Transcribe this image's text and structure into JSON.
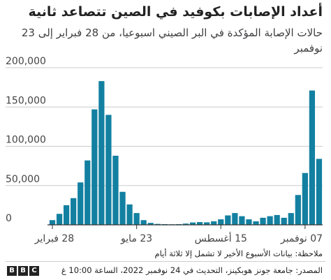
{
  "header": {
    "title": "أعداد الإصابات بكوفيد في الصين تتصاعد ثانية",
    "subtitle": "حالات الإصابة المؤكدة في البر الصيني اسبوعيا، من 28 فبراير إلى 23 نوفمبر"
  },
  "footer": {
    "note": "ملاحظة: بيانات الأسبوع الأخير لا تشمل إلا ثلاثة أيام",
    "source": "المصدر: جامعة جونز هوبكينز، التحديث في 24 نوفمبر 2022، الساعة 10:00 غ",
    "logo_letters": [
      "B",
      "B",
      "C"
    ]
  },
  "colors": {
    "bar": "#1380a1",
    "grid": "#cbcbcb",
    "axis": "#333333",
    "text": "#222222"
  },
  "chart_data": {
    "type": "bar",
    "title": "أعداد الإصابات بكوفيد في الصين تتصاعد ثانية",
    "subtitle": "حالات الإصابة المؤكدة في البر الصيني اسبوعيا، من 28 فبراير إلى 23 نوفمبر",
    "xlabel": "",
    "ylabel": "",
    "ylim": [
      0,
      200000
    ],
    "yticks": [
      0,
      50000,
      100000,
      150000,
      200000
    ],
    "ytick_labels": [
      "0",
      "50,000",
      "100,000",
      "150,000",
      "200,000"
    ],
    "grid": true,
    "x_tick_labels": [
      {
        "label": "28 فبراير",
        "week_index": 0
      },
      {
        "label": "23 مايو",
        "week_index": 12
      },
      {
        "label": "15 أغسطس",
        "week_index": 24
      },
      {
        "label": "07 نوفمبر",
        "week_index": 36
      }
    ],
    "series": [
      {
        "values": [
          6000,
          14000,
          25000,
          34000,
          54000,
          82000,
          147000,
          183000,
          140000,
          88000,
          42000,
          26000,
          15000,
          6000,
          2500,
          1200,
          900,
          700,
          900,
          1600,
          3000,
          3500,
          3200,
          4500,
          7000,
          12000,
          15000,
          11000,
          7000,
          4500,
          9000,
          11000,
          12500,
          9000,
          15000,
          38000,
          66000,
          171000,
          84000
        ]
      }
    ]
  }
}
